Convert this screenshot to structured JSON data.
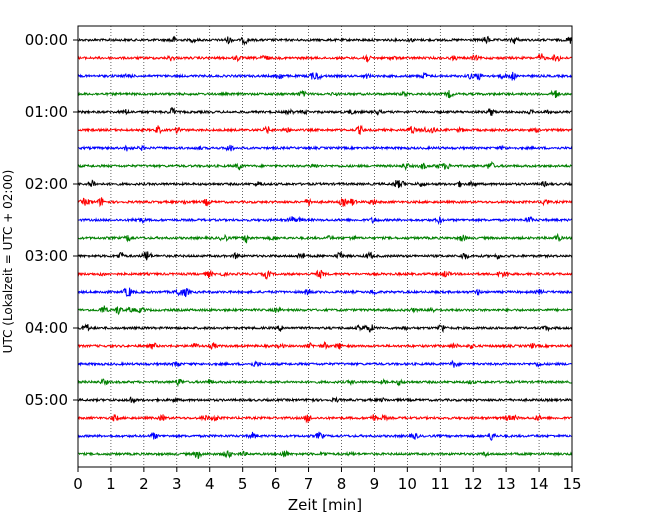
{
  "chart_data": {
    "type": "line",
    "title": "",
    "xlabel": "Zeit  [min]",
    "ylabel": "UTC (Lokalzeit = UTC + 02:00)",
    "xlim": [
      0,
      15
    ],
    "x_ticks": [
      0,
      1,
      2,
      3,
      4,
      5,
      6,
      7,
      8,
      9,
      10,
      11,
      12,
      13,
      14,
      15
    ],
    "x_tick_labels": [
      "0",
      "1",
      "2",
      "3",
      "4",
      "5",
      "6",
      "7",
      "8",
      "9",
      "10",
      "11",
      "12",
      "13",
      "14",
      "15"
    ],
    "y_tick_labels": [
      "00:00",
      "01:00",
      "02:00",
      "03:00",
      "04:00",
      "05:00"
    ],
    "grid": "vertical dotted",
    "trace_interval_minutes": 15,
    "trace_count": 24,
    "trace_colors": [
      "#000000",
      "#ff0000",
      "#0000ff",
      "#008000"
    ],
    "series": [
      {
        "start": "00:00",
        "color": "#000000"
      },
      {
        "start": "00:15",
        "color": "#ff0000"
      },
      {
        "start": "00:30",
        "color": "#0000ff"
      },
      {
        "start": "00:45",
        "color": "#008000"
      },
      {
        "start": "01:00",
        "color": "#000000"
      },
      {
        "start": "01:15",
        "color": "#ff0000"
      },
      {
        "start": "01:30",
        "color": "#0000ff"
      },
      {
        "start": "01:45",
        "color": "#008000"
      },
      {
        "start": "02:00",
        "color": "#000000"
      },
      {
        "start": "02:15",
        "color": "#ff0000"
      },
      {
        "start": "02:30",
        "color": "#0000ff"
      },
      {
        "start": "02:45",
        "color": "#008000"
      },
      {
        "start": "03:00",
        "color": "#000000"
      },
      {
        "start": "03:15",
        "color": "#ff0000"
      },
      {
        "start": "03:30",
        "color": "#0000ff"
      },
      {
        "start": "03:45",
        "color": "#008000"
      },
      {
        "start": "04:00",
        "color": "#000000"
      },
      {
        "start": "04:15",
        "color": "#ff0000"
      },
      {
        "start": "04:30",
        "color": "#0000ff"
      },
      {
        "start": "04:45",
        "color": "#008000"
      },
      {
        "start": "05:00",
        "color": "#000000"
      },
      {
        "start": "05:15",
        "color": "#ff0000"
      },
      {
        "start": "05:30",
        "color": "#0000ff"
      },
      {
        "start": "05:45",
        "color": "#008000"
      }
    ]
  }
}
